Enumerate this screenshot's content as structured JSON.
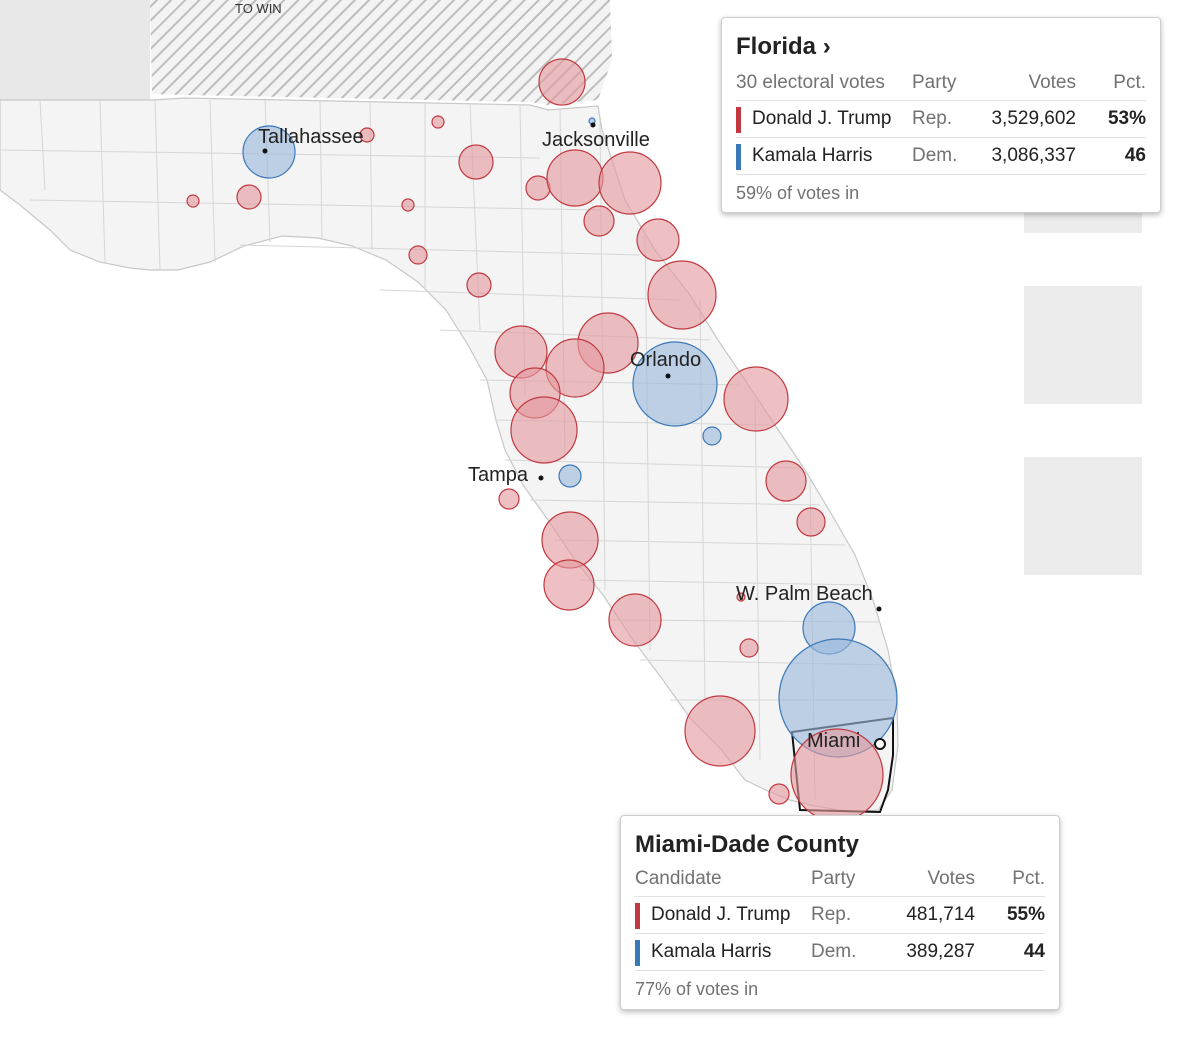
{
  "legend": {
    "to_win_label": "TO WIN"
  },
  "colors": {
    "rep_fill": "#e39a9e",
    "rep_stroke": "#c0393f",
    "dem_fill": "#9ab8dc",
    "dem_stroke": "#3b78b8",
    "land": "#f5f5f5",
    "county_line": "#d8d8d8"
  },
  "cities": [
    {
      "name": "Tallahassee",
      "id": "tallahassee"
    },
    {
      "name": "Jacksonville",
      "id": "jacksonville"
    },
    {
      "name": "Orlando",
      "id": "orlando"
    },
    {
      "name": "Tampa",
      "id": "tampa"
    },
    {
      "name": "W. Palm Beach",
      "id": "west-palm-beach"
    },
    {
      "name": "Miami",
      "id": "miami"
    }
  ],
  "state_tooltip": {
    "title": "Florida",
    "title_arrow": "›",
    "header": {
      "electoral": "30 electoral votes",
      "party": "Party",
      "votes": "Votes",
      "pct": "Pct."
    },
    "rows": [
      {
        "candidate": "Donald J. Trump",
        "party": "Rep.",
        "votes": "3,529,602",
        "pct": "53%",
        "color": "#c0393f"
      },
      {
        "candidate": "Kamala Harris",
        "party": "Dem.",
        "votes": "3,086,337",
        "pct": "46",
        "color": "#3b78b8"
      }
    ],
    "footer": "59% of votes in"
  },
  "county_tooltip": {
    "title": "Miami-Dade County",
    "header": {
      "candidate": "Candidate",
      "party": "Party",
      "votes": "Votes",
      "pct": "Pct."
    },
    "rows": [
      {
        "candidate": "Donald J. Trump",
        "party": "Rep.",
        "votes": "481,714",
        "pct": "55%",
        "color": "#c0393f"
      },
      {
        "candidate": "Kamala Harris",
        "party": "Dem.",
        "votes": "389,287",
        "pct": "44",
        "color": "#3b78b8"
      }
    ],
    "footer": "77% of votes in"
  }
}
